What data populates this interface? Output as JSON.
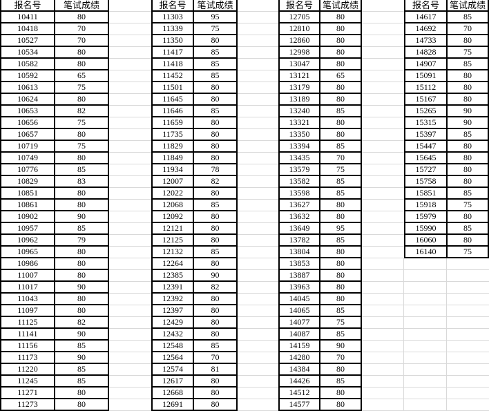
{
  "columns": {
    "id_label": "报名号",
    "score_label": "笔试成绩"
  },
  "tables": [
    {
      "rows": [
        [
          "10411",
          "80"
        ],
        [
          "10418",
          "70"
        ],
        [
          "10527",
          "70"
        ],
        [
          "10534",
          "80"
        ],
        [
          "10582",
          "80"
        ],
        [
          "10592",
          "65"
        ],
        [
          "10613",
          "75"
        ],
        [
          "10624",
          "80"
        ],
        [
          "10653",
          "82"
        ],
        [
          "10656",
          "75"
        ],
        [
          "10657",
          "80"
        ],
        [
          "10719",
          "75"
        ],
        [
          "10749",
          "80"
        ],
        [
          "10776",
          "85"
        ],
        [
          "10829",
          "83"
        ],
        [
          "10851",
          "80"
        ],
        [
          "10861",
          "80"
        ],
        [
          "10902",
          "90"
        ],
        [
          "10957",
          "85"
        ],
        [
          "10962",
          "79"
        ],
        [
          "10965",
          "80"
        ],
        [
          "10986",
          "80"
        ],
        [
          "11007",
          "80"
        ],
        [
          "11017",
          "90"
        ],
        [
          "11043",
          "80"
        ],
        [
          "11097",
          "80"
        ],
        [
          "11125",
          "82"
        ],
        [
          "11141",
          "90"
        ],
        [
          "11156",
          "85"
        ],
        [
          "11173",
          "90"
        ],
        [
          "11220",
          "85"
        ],
        [
          "11245",
          "85"
        ],
        [
          "11271",
          "80"
        ],
        [
          "11273",
          "80"
        ]
      ]
    },
    {
      "rows": [
        [
          "11303",
          "95"
        ],
        [
          "11339",
          "75"
        ],
        [
          "11350",
          "80"
        ],
        [
          "11417",
          "85"
        ],
        [
          "11418",
          "85"
        ],
        [
          "11452",
          "85"
        ],
        [
          "11501",
          "80"
        ],
        [
          "11645",
          "80"
        ],
        [
          "11646",
          "85"
        ],
        [
          "11659",
          "80"
        ],
        [
          "11735",
          "80"
        ],
        [
          "11829",
          "80"
        ],
        [
          "11849",
          "80"
        ],
        [
          "11934",
          "78"
        ],
        [
          "12007",
          "82"
        ],
        [
          "12022",
          "80"
        ],
        [
          "12068",
          "85"
        ],
        [
          "12092",
          "80"
        ],
        [
          "12121",
          "80"
        ],
        [
          "12125",
          "80"
        ],
        [
          "12132",
          "85"
        ],
        [
          "12264",
          "80"
        ],
        [
          "12385",
          "90"
        ],
        [
          "12391",
          "82"
        ],
        [
          "12392",
          "80"
        ],
        [
          "12397",
          "80"
        ],
        [
          "12429",
          "80"
        ],
        [
          "12432",
          "80"
        ],
        [
          "12548",
          "85"
        ],
        [
          "12564",
          "70"
        ],
        [
          "12574",
          "81"
        ],
        [
          "12617",
          "80"
        ],
        [
          "12668",
          "80"
        ],
        [
          "12691",
          "80"
        ]
      ]
    },
    {
      "rows": [
        [
          "12705",
          "80"
        ],
        [
          "12810",
          "80"
        ],
        [
          "12860",
          "80"
        ],
        [
          "12998",
          "80"
        ],
        [
          "13047",
          "80"
        ],
        [
          "13121",
          "65"
        ],
        [
          "13179",
          "80"
        ],
        [
          "13189",
          "80"
        ],
        [
          "13240",
          "85"
        ],
        [
          "13321",
          "80"
        ],
        [
          "13350",
          "80"
        ],
        [
          "13394",
          "85"
        ],
        [
          "13435",
          "70"
        ],
        [
          "13579",
          "75"
        ],
        [
          "13582",
          "85"
        ],
        [
          "13598",
          "85"
        ],
        [
          "13627",
          "80"
        ],
        [
          "13632",
          "80"
        ],
        [
          "13649",
          "95"
        ],
        [
          "13782",
          "85"
        ],
        [
          "13804",
          "80"
        ],
        [
          "13853",
          "80"
        ],
        [
          "13887",
          "80"
        ],
        [
          "13963",
          "80"
        ],
        [
          "14045",
          "80"
        ],
        [
          "14065",
          "85"
        ],
        [
          "14077",
          "75"
        ],
        [
          "14087",
          "85"
        ],
        [
          "14159",
          "90"
        ],
        [
          "14280",
          "70"
        ],
        [
          "14384",
          "80"
        ],
        [
          "14426",
          "85"
        ],
        [
          "14512",
          "80"
        ],
        [
          "14577",
          "80"
        ]
      ]
    },
    {
      "rows": [
        [
          "14617",
          "85"
        ],
        [
          "14692",
          "70"
        ],
        [
          "14733",
          "80"
        ],
        [
          "14828",
          "75"
        ],
        [
          "14907",
          "85"
        ],
        [
          "15091",
          "80"
        ],
        [
          "15112",
          "80"
        ],
        [
          "15167",
          "80"
        ],
        [
          "15265",
          "90"
        ],
        [
          "15315",
          "90"
        ],
        [
          "15397",
          "85"
        ],
        [
          "15447",
          "80"
        ],
        [
          "15645",
          "80"
        ],
        [
          "15727",
          "80"
        ],
        [
          "15758",
          "80"
        ],
        [
          "15851",
          "85"
        ],
        [
          "15918",
          "75"
        ],
        [
          "15979",
          "80"
        ],
        [
          "15990",
          "85"
        ],
        [
          "16060",
          "80"
        ],
        [
          "16140",
          "75"
        ]
      ]
    }
  ],
  "colors": {
    "border": "#000000",
    "gridline": "#d9d9d9",
    "cell_bg": "#ffffff"
  }
}
